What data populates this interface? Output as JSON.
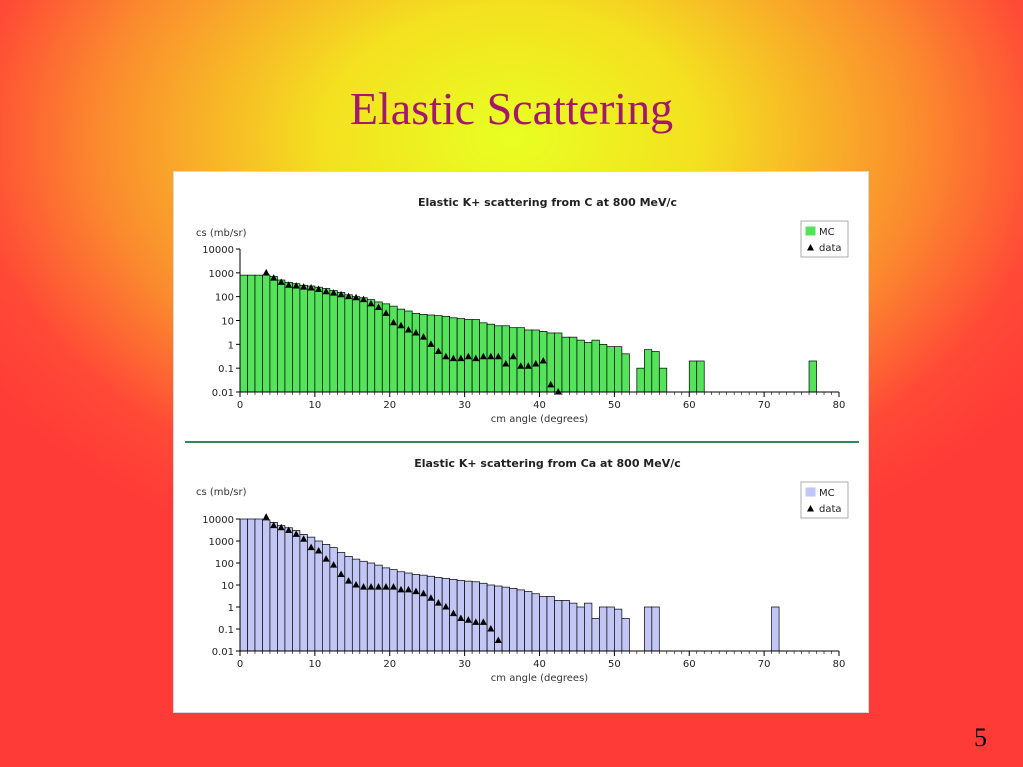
{
  "slide": {
    "title": "Elastic Scattering",
    "page_number": "5"
  },
  "chart_data": [
    {
      "type": "bar",
      "title": "Elastic K+ scattering from C at 800 MeV/c",
      "xlabel": "cm angle (degrees)",
      "ylabel": "cs (mb/sr)",
      "xlim": [
        0,
        80
      ],
      "ylim": [
        0.01,
        10000
      ],
      "yscale": "log",
      "xticks": [
        "0",
        "10",
        "20",
        "30",
        "40",
        "50",
        "60",
        "70",
        "80"
      ],
      "yticks": [
        "10000",
        "1000",
        "100",
        "10",
        "1",
        "0.1",
        "0.01"
      ],
      "legend": {
        "position": "top-right",
        "entries": [
          "MC",
          "data"
        ]
      },
      "series": [
        {
          "name": "MC",
          "kind": "bar",
          "color": "#55e35c",
          "bin_width": 1,
          "bin_start": 0,
          "values": [
            800,
            800,
            800,
            800,
            700,
            500,
            400,
            350,
            300,
            280,
            250,
            220,
            180,
            150,
            120,
            100,
            90,
            75,
            60,
            50,
            40,
            30,
            25,
            20,
            18,
            17,
            16,
            15,
            13,
            12,
            11,
            11,
            8,
            7,
            6,
            6,
            5,
            5,
            4,
            4,
            3.5,
            3,
            3,
            2,
            2,
            1.5,
            1.2,
            1.5,
            1,
            0.8,
            0.8,
            0.4,
            0,
            0.1,
            0.6,
            0.5,
            0.1,
            0,
            0,
            0,
            0.2,
            0.2,
            0,
            0,
            0,
            0,
            0,
            0,
            0,
            0,
            0,
            0,
            0,
            0,
            0,
            0,
            0.2,
            0,
            0,
            0
          ]
        },
        {
          "name": "data",
          "kind": "scatter",
          "color": "#000000",
          "marker": "triangle",
          "x": [
            3.5,
            4.5,
            5.5,
            6.5,
            7.5,
            8.5,
            9.5,
            10.5,
            11.5,
            12.5,
            13.5,
            14.5,
            15.5,
            16.5,
            17.5,
            18.5,
            19.5,
            20.5,
            21.5,
            22.5,
            23.5,
            24.5,
            25.5,
            26.5,
            27.5,
            28.5,
            29.5,
            30.5,
            31.5,
            32.5,
            33.5,
            34.5,
            35.5,
            36.5,
            37.5,
            38.5,
            39.5,
            40.5,
            41.5,
            42.5
          ],
          "y": [
            1000,
            600,
            400,
            300,
            280,
            250,
            230,
            200,
            160,
            140,
            120,
            100,
            90,
            75,
            50,
            35,
            20,
            8,
            6,
            4,
            3,
            2,
            1,
            0.5,
            0.3,
            0.25,
            0.25,
            0.3,
            0.25,
            0.3,
            0.3,
            0.3,
            0.15,
            0.3,
            0.12,
            0.12,
            0.15,
            0.2,
            0.02,
            0.01
          ]
        }
      ]
    },
    {
      "type": "bar",
      "title": "Elastic K+ scattering from Ca at 800 MeV/c",
      "xlabel": "cm angle (degrees)",
      "ylabel": "cs (mb/sr)",
      "xlim": [
        0,
        80
      ],
      "ylim": [
        0.01,
        10000
      ],
      "yscale": "log",
      "xticks": [
        "0",
        "10",
        "20",
        "30",
        "40",
        "50",
        "60",
        "70",
        "80"
      ],
      "yticks": [
        "10000",
        "1000",
        "100",
        "10",
        "1",
        "0.1",
        "0.01"
      ],
      "legend": {
        "position": "top-right",
        "entries": [
          "MC",
          "data"
        ]
      },
      "series": [
        {
          "name": "MC",
          "kind": "bar",
          "color": "#c2c6f5",
          "bin_width": 1,
          "bin_start": 0,
          "values": [
            10000,
            10000,
            10000,
            9000,
            7000,
            5000,
            4000,
            3000,
            2000,
            1500,
            1000,
            700,
            500,
            300,
            200,
            150,
            120,
            100,
            80,
            60,
            50,
            40,
            35,
            30,
            28,
            25,
            22,
            20,
            18,
            16,
            15,
            14,
            12,
            10,
            9,
            8,
            7,
            6,
            5,
            4,
            3,
            3,
            2,
            2,
            1.5,
            1,
            1.5,
            0.3,
            1,
            1,
            0.8,
            0.3,
            0,
            0,
            1,
            1,
            0,
            0,
            0,
            0,
            0,
            0,
            0,
            0,
            0,
            0,
            0,
            0,
            0,
            0,
            0,
            1,
            0,
            0,
            0,
            0,
            0,
            0,
            0,
            0
          ]
        },
        {
          "name": "data",
          "kind": "scatter",
          "color": "#000000",
          "marker": "triangle",
          "x": [
            3.5,
            4.5,
            5.5,
            6.5,
            7.5,
            8.5,
            9.5,
            10.5,
            11.5,
            12.5,
            13.5,
            14.5,
            15.5,
            16.5,
            17.5,
            18.5,
            19.5,
            20.5,
            21.5,
            22.5,
            23.5,
            24.5,
            25.5,
            26.5,
            27.5,
            28.5,
            29.5,
            30.5,
            31.5,
            32.5,
            33.5,
            34.5
          ],
          "y": [
            12000,
            5000,
            4000,
            3000,
            2000,
            1200,
            500,
            350,
            150,
            80,
            30,
            15,
            10,
            8,
            8,
            8,
            8,
            8,
            6,
            6,
            5,
            4,
            2.5,
            1.5,
            1,
            0.5,
            0.3,
            0.25,
            0.2,
            0.2,
            0.1,
            0.03
          ]
        }
      ]
    }
  ]
}
